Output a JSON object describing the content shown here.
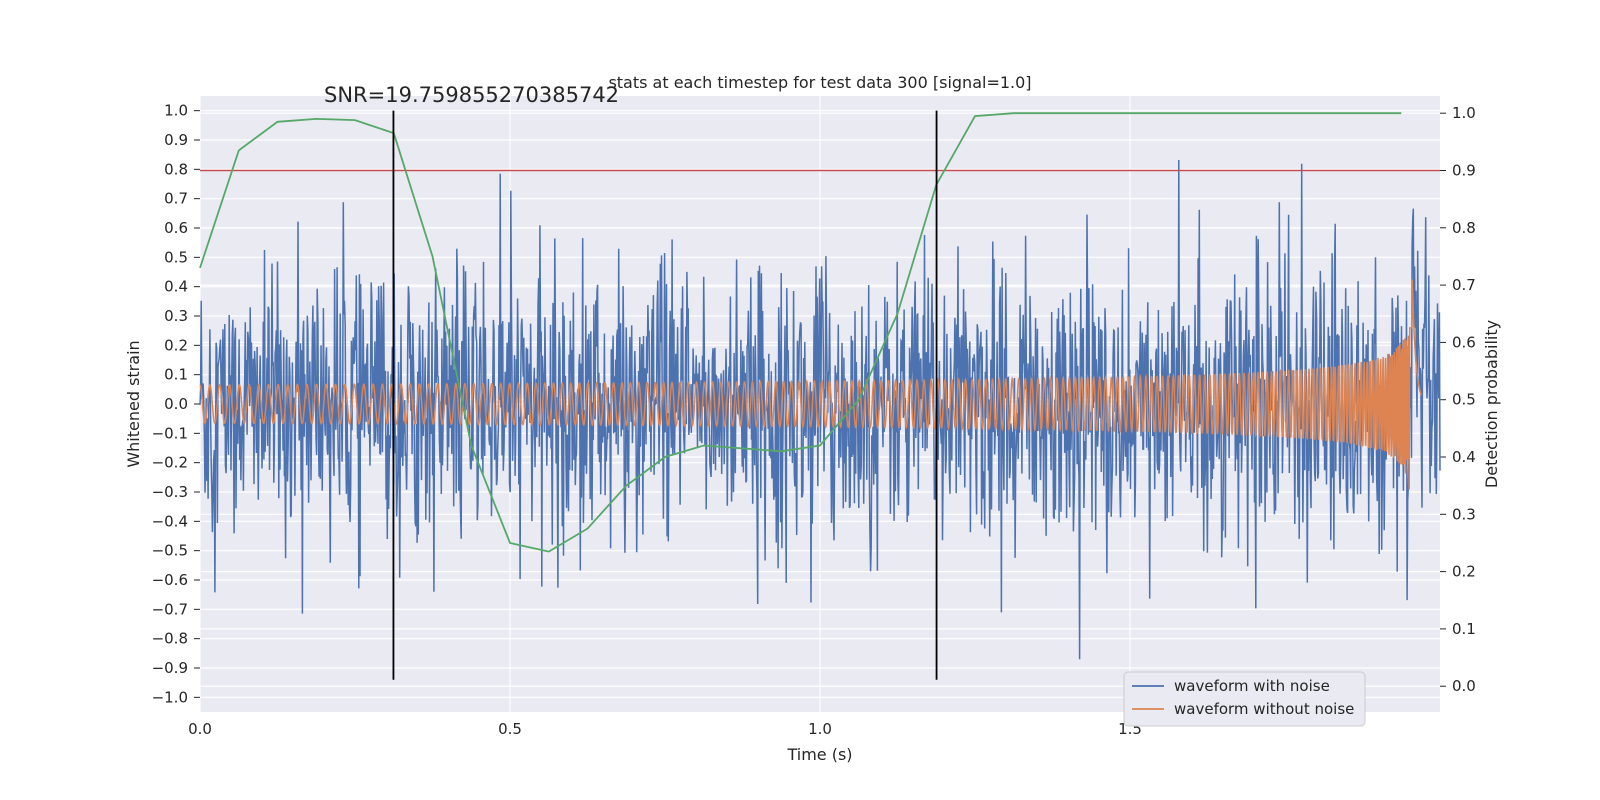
{
  "chart_data": {
    "type": "line",
    "title": "stats at each timestep for test data 300 [signal=1.0]",
    "xlabel": "Time (s)",
    "ylabel": "Whitened strain",
    "y2label": "Detection probability",
    "xlim": [
      0.0,
      2.0
    ],
    "ylim": [
      -1.05,
      1.05
    ],
    "y2lim": [
      -0.045,
      1.03
    ],
    "x_ticks": [
      0.0,
      0.5,
      1.0,
      1.5
    ],
    "x_tick_labels": [
      "0.0",
      "0.5",
      "1.0",
      "1.5"
    ],
    "y_ticks": [
      -1.0,
      -0.9,
      -0.8,
      -0.7,
      -0.6,
      -0.5,
      -0.4,
      -0.3,
      -0.2,
      -0.1,
      0.0,
      0.1,
      0.2,
      0.3,
      0.4,
      0.5,
      0.6,
      0.7,
      0.8,
      0.9,
      1.0
    ],
    "y_tick_labels": [
      "−1.0",
      "−0.9",
      "−0.8",
      "−0.7",
      "−0.6",
      "−0.5",
      "−0.4",
      "−0.3",
      "−0.2",
      "−0.1",
      "0.0",
      "0.1",
      "0.2",
      "0.3",
      "0.4",
      "0.5",
      "0.6",
      "0.7",
      "0.8",
      "0.9",
      "1.0"
    ],
    "y2_ticks": [
      0.0,
      0.1,
      0.2,
      0.3,
      0.4,
      0.5,
      0.6,
      0.7,
      0.8,
      0.9,
      1.0
    ],
    "y2_tick_labels": [
      "0.0",
      "0.1",
      "0.2",
      "0.3",
      "0.4",
      "0.5",
      "0.6",
      "0.7",
      "0.8",
      "0.9",
      "1.0"
    ],
    "grid": true,
    "annotation": "SNR=19.759855270385742",
    "annotation_at": {
      "x": 0.2,
      "y": 1.03
    },
    "vlines": [
      {
        "x": 0.312,
        "ymin": -0.94,
        "ymax": 1.0
      },
      {
        "x": 1.188,
        "ymin": -0.94,
        "ymax": 1.0
      }
    ],
    "hline": {
      "y2": 0.9,
      "name": "threshold"
    },
    "legend": {
      "placement": "lower-right",
      "entries": [
        "waveform with noise",
        "waveform without noise"
      ]
    },
    "series": [
      {
        "name": "waveform with noise",
        "axis": "left",
        "color": "#4c72b0",
        "x_start": 0.0,
        "x_end": 2.0,
        "n_points": 2000,
        "noise_amplitude": 0.22,
        "max_abs": 1.0
      },
      {
        "name": "waveform without noise",
        "axis": "left",
        "color": "#dd8452",
        "x_start": 0.0,
        "x_end": 1.97,
        "chirp_time": 1.955,
        "start_amplitude": 0.065,
        "peak_amplitude": 0.52,
        "start_frequency": 34,
        "cycles_in_view": 196
      },
      {
        "name": "detection probability",
        "axis": "right",
        "color": "#55a868",
        "x": [
          0.0,
          0.0625,
          0.125,
          0.1875,
          0.25,
          0.3125,
          0.375,
          0.4375,
          0.5,
          0.5625,
          0.625,
          0.6875,
          0.75,
          0.8125,
          0.875,
          0.9375,
          1.0,
          1.0625,
          1.125,
          1.1875,
          1.25,
          1.3125,
          1.375,
          1.4375,
          1.5,
          1.5625,
          1.625,
          1.6875,
          1.75,
          1.8125,
          1.875,
          1.9375
        ],
        "values": [
          0.73,
          0.935,
          0.985,
          0.99,
          0.988,
          0.965,
          0.75,
          0.42,
          0.25,
          0.235,
          0.275,
          0.35,
          0.4,
          0.42,
          0.415,
          0.41,
          0.42,
          0.5,
          0.65,
          0.875,
          0.995,
          1.0,
          1.0,
          1.0,
          1.0,
          1.0,
          1.0,
          1.0,
          1.0,
          1.0,
          1.0,
          1.0
        ]
      },
      {
        "name": "threshold",
        "axis": "right",
        "color": "#c44e52",
        "values": [
          0.9
        ]
      }
    ]
  }
}
